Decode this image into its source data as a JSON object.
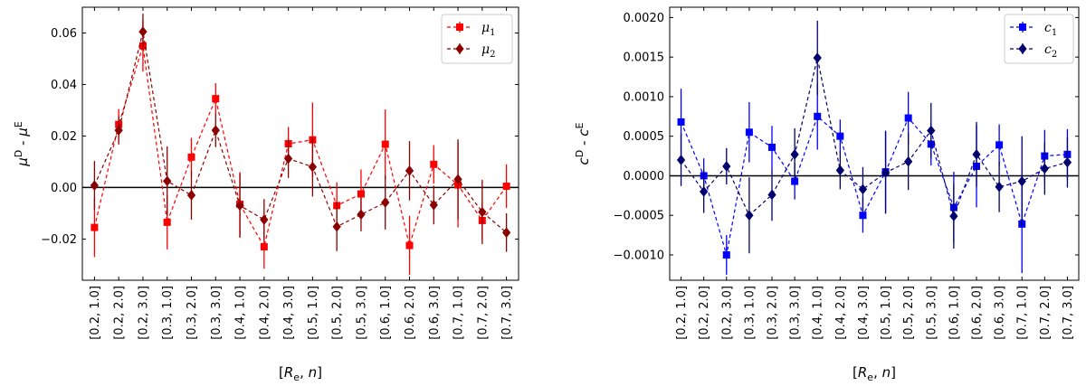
{
  "chart_data": [
    {
      "type": "scatter",
      "title": "",
      "xlabel": "[R_e, n]",
      "ylabel": "μ^D - μ^E",
      "categories": [
        "[0.2, 1.0]",
        "[0.2, 2.0]",
        "[0.2, 3.0]",
        "[0.3, 1.0]",
        "[0.3, 2.0]",
        "[0.3, 3.0]",
        "[0.4, 1.0]",
        "[0.4, 2.0]",
        "[0.4, 3.0]",
        "[0.5, 1.0]",
        "[0.5, 2.0]",
        "[0.5, 3.0]",
        "[0.6, 1.0]",
        "[0.6, 2.0]",
        "[0.6, 3.0]",
        "[0.7, 1.0]",
        "[0.7, 2.0]",
        "[0.7, 3.0]"
      ],
      "ylim": [
        -0.036,
        0.07
      ],
      "yticks": [
        -0.02,
        0.0,
        0.02,
        0.04,
        0.06
      ],
      "ytick_labels": [
        "−0.02",
        "0.00",
        "0.02",
        "0.04",
        "0.06"
      ],
      "zero_line": 0,
      "grid": false,
      "legend_position": "top-right",
      "series": [
        {
          "name": "μ1",
          "legend_label": {
            "base": "μ",
            "sub": "1"
          },
          "color": "#ff0000",
          "marker": "square",
          "values": [
            -0.0155,
            0.0245,
            0.055,
            -0.0135,
            0.0118,
            0.0345,
            -0.0065,
            -0.023,
            0.017,
            0.0185,
            -0.007,
            -0.0025,
            0.0168,
            -0.0225,
            0.009,
            0.001,
            -0.0128,
            0.0005
          ],
          "errors": [
            0.0115,
            0.006,
            0.01,
            0.0105,
            0.0075,
            0.006,
            0.0125,
            0.0085,
            0.0065,
            0.0145,
            0.009,
            0.0095,
            0.0135,
            0.0115,
            0.0075,
            0.0165,
            0.0075,
            0.0085
          ]
        },
        {
          "name": "μ2",
          "legend_label": {
            "base": "μ",
            "sub": "2"
          },
          "color": "#8b0000",
          "marker": "diamond",
          "values": [
            0.0008,
            0.0222,
            0.0605,
            0.0025,
            -0.003,
            0.0222,
            -0.007,
            -0.0125,
            0.0112,
            0.008,
            -0.0152,
            -0.0105,
            -0.0058,
            0.0065,
            -0.0068,
            0.0032,
            -0.0095,
            -0.0175
          ],
          "errors": [
            0.0095,
            0.0055,
            0.007,
            0.0135,
            0.0095,
            0.0065,
            0.0125,
            0.008,
            0.0075,
            0.0115,
            0.0095,
            0.0065,
            0.0105,
            0.0115,
            0.0075,
            0.0155,
            0.0125,
            0.0075
          ]
        }
      ]
    },
    {
      "type": "scatter",
      "title": "",
      "xlabel": "[R_e, n]",
      "ylabel": "c^D - c^E",
      "categories": [
        "[0.2, 1.0]",
        "[0.2, 2.0]",
        "[0.2, 3.0]",
        "[0.3, 1.0]",
        "[0.3, 2.0]",
        "[0.3, 3.0]",
        "[0.4, 1.0]",
        "[0.4, 2.0]",
        "[0.4, 3.0]",
        "[0.5, 1.0]",
        "[0.5, 2.0]",
        "[0.5, 3.0]",
        "[0.6, 1.0]",
        "[0.6, 2.0]",
        "[0.6, 3.0]",
        "[0.7, 1.0]",
        "[0.7, 2.0]",
        "[0.7, 3.0]"
      ],
      "ylim": [
        -0.00132,
        0.00213
      ],
      "yticks": [
        -0.001,
        -0.0005,
        0.0,
        0.0005,
        0.001,
        0.0015,
        0.002
      ],
      "ytick_labels": [
        "−0.0010",
        "−0.0005",
        "0.0000",
        "0.0005",
        "0.0010",
        "0.0015",
        "0.0020"
      ],
      "zero_line": 0,
      "grid": false,
      "legend_position": "top-right",
      "series": [
        {
          "name": "c1",
          "legend_label": {
            "base": "c",
            "sub": "1"
          },
          "color": "#0000ff",
          "marker": "square",
          "values": [
            0.00068,
            0.0,
            -0.001,
            0.00055,
            0.00036,
            -7e-05,
            0.00075,
            0.0005,
            -0.0005,
            5e-05,
            0.00073,
            0.0004,
            -0.0004,
            0.00012,
            0.00039,
            -0.00061,
            0.00025,
            0.00027
          ],
          "errors": [
            0.00042,
            0.00022,
            0.00025,
            0.00038,
            0.00027,
            0.00023,
            0.00042,
            0.00021,
            0.00022,
            0.00052,
            0.00033,
            0.00027,
            0.00045,
            0.00052,
            0.00026,
            0.00062,
            0.00033,
            0.00032
          ]
        },
        {
          "name": "c2",
          "legend_label": {
            "base": "c",
            "sub": "2"
          },
          "color": "#00006e",
          "marker": "diamond",
          "values": [
            0.0002,
            -0.0002,
            0.00012,
            -0.0005,
            -0.00024,
            0.00027,
            0.00149,
            7e-05,
            -0.00017,
            4e-05,
            0.00018,
            0.00057,
            -0.00051,
            0.00027,
            -0.00014,
            -7e-05,
            9e-05,
            0.00017
          ],
          "errors": [
            0.00033,
            0.00027,
            0.00023,
            0.00048,
            0.00033,
            0.00033,
            0.00047,
            0.00024,
            0.00028,
            0.00052,
            0.00036,
            0.00035,
            0.00041,
            0.00041,
            0.00032,
            0.00057,
            0.00033,
            0.00032
          ]
        }
      ]
    }
  ]
}
